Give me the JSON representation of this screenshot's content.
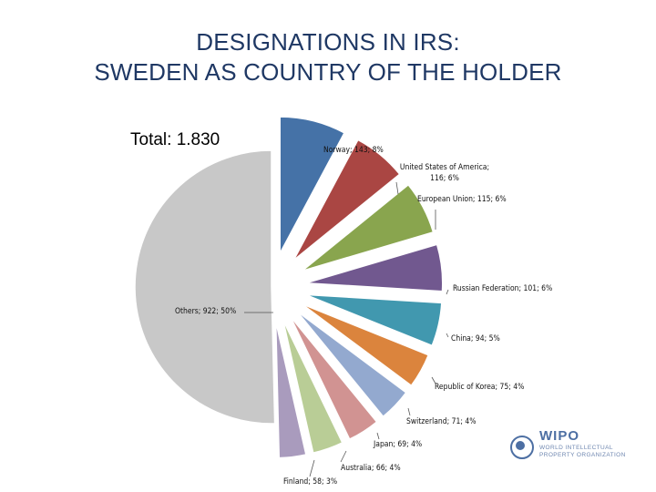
{
  "title_line1": "DESIGNATIONS IN IRS:",
  "title_line2": "SWEDEN AS COUNTRY OF THE HOLDER",
  "total_label": "Total: 1.830",
  "logo": {
    "name": "WIPO",
    "subtitle": "WORLD INTELLECTUAL PROPERTY ORGANIZATION"
  },
  "chart_data": {
    "type": "pie",
    "title": "",
    "total": 1830,
    "slices": [
      {
        "label": "Norway; 143; 8%",
        "name": "Norway",
        "value": 143,
        "percent": 8,
        "color": "#4572a7"
      },
      {
        "label": "United States of America; 116; 6%",
        "name": "United States of America",
        "value": 116,
        "percent": 6,
        "color": "#aa4643"
      },
      {
        "label": "European Union; 115; 6%",
        "name": "European Union",
        "value": 115,
        "percent": 6,
        "color": "#89a54e"
      },
      {
        "label": "Russian Federation; 101; 6%",
        "name": "Russian Federation",
        "value": 101,
        "percent": 6,
        "color": "#71588f"
      },
      {
        "label": "China; 94; 5%",
        "name": "China",
        "value": 94,
        "percent": 5,
        "color": "#4198af"
      },
      {
        "label": "Republic of Korea; 75; 4%",
        "name": "Republic of Korea",
        "value": 75,
        "percent": 4,
        "color": "#db843d"
      },
      {
        "label": "Switzerland; 71; 4%",
        "name": "Switzerland",
        "value": 71,
        "percent": 4,
        "color": "#93a9cf"
      },
      {
        "label": "Japan; 69; 4%",
        "name": "Japan",
        "value": 69,
        "percent": 4,
        "color": "#d19392"
      },
      {
        "label": "Australia; 66; 4%",
        "name": "Australia",
        "value": 66,
        "percent": 4,
        "color": "#b9cd96"
      },
      {
        "label": "Finland; 58; 3%",
        "name": "Finland",
        "value": 58,
        "percent": 3,
        "color": "#a99bbd"
      },
      {
        "label": "Others; 922; 50%",
        "name": "Others",
        "value": 922,
        "percent": 50,
        "color": "#c8c8c8"
      }
    ]
  }
}
